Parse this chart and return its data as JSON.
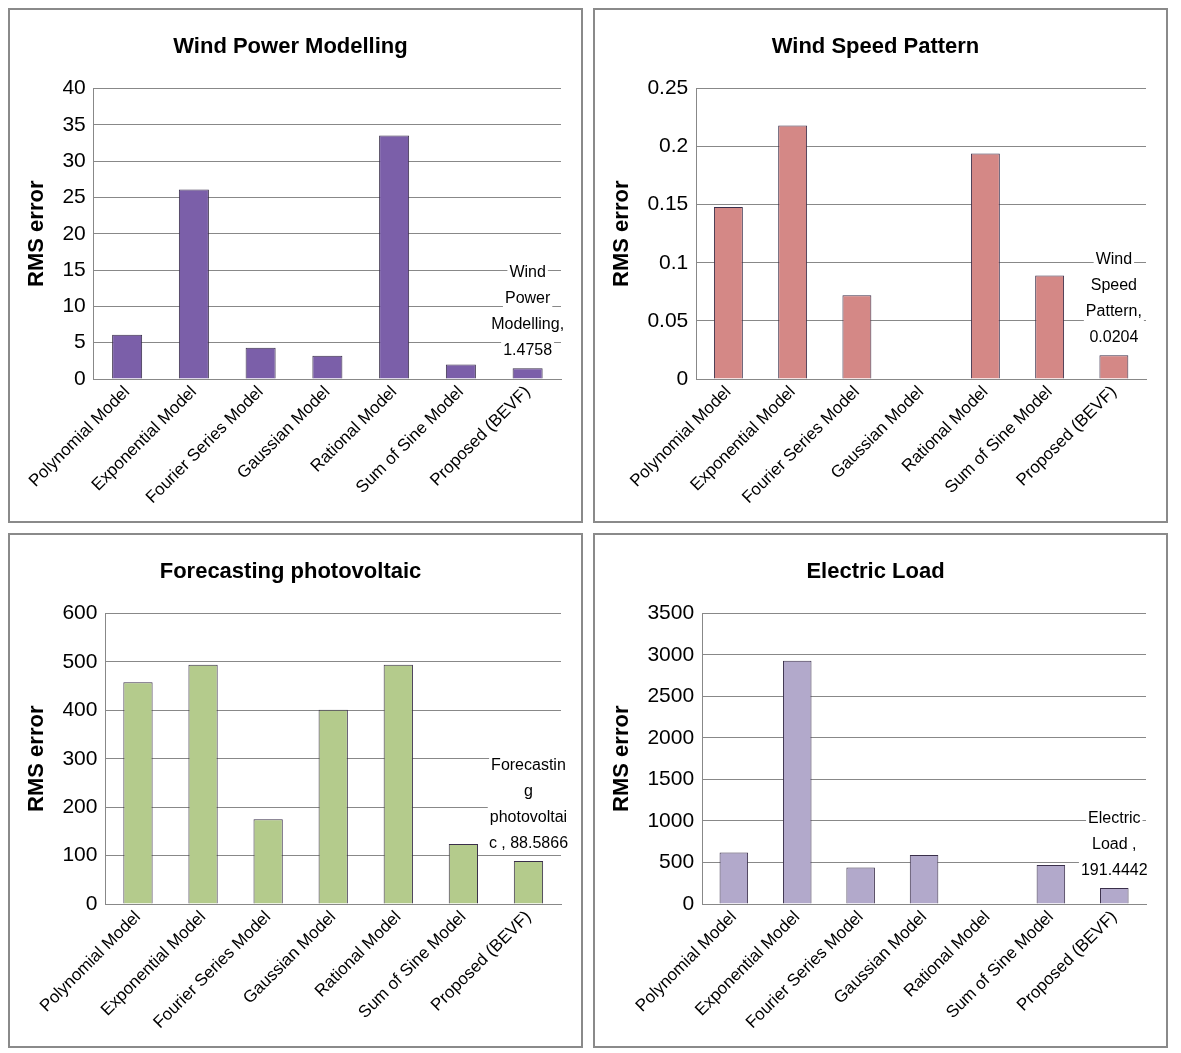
{
  "chart_data": [
    {
      "type": "bar",
      "title": "Wind Power Modelling",
      "ylabel": "RMS error",
      "categories": [
        "Polynomial Model",
        "Exponential Model",
        "Fourier Series Model",
        "Gaussian Model",
        "Rational Model",
        "Sum of Sine Model",
        "Proposed (BEVF)"
      ],
      "color": "#7b5fa9",
      "values": [
        6.1,
        26.1,
        4.3,
        3.2,
        33.5,
        2.0,
        1.4758
      ],
      "value_labels": [
        null,
        null,
        null,
        null,
        null,
        null,
        "Wind Power Modelling, 1.4758"
      ],
      "ylim": [
        0,
        40
      ],
      "yticks": [
        0,
        5,
        10,
        15,
        20,
        25,
        30,
        35,
        40
      ],
      "grid": "y",
      "legend": false
    },
    {
      "type": "bar",
      "title": "Wind Speed Pattern",
      "ylabel": "RMS error",
      "categories": [
        "Polynomial Model",
        "Exponential Model",
        "Fourier Series Model",
        "Gaussian Model",
        "Rational Model",
        "Sum of Sine Model",
        "Proposed (BEVF)"
      ],
      "color": "#d48886",
      "values": [
        0.148,
        0.218,
        0.072,
        null,
        0.194,
        0.089,
        0.0204
      ],
      "value_labels": [
        null,
        null,
        null,
        null,
        null,
        null,
        "Wind Speed Pattern, 0.0204"
      ],
      "ylim": [
        0,
        0.25
      ],
      "yticks": [
        0,
        0.05,
        0.1,
        0.15,
        0.2,
        0.25
      ],
      "grid": "y",
      "legend": false
    },
    {
      "type": "bar",
      "title": "Forecasting photovoltaic",
      "ylabel": "RMS error",
      "categories": [
        "Polynomial Model",
        "Exponential Model",
        "Fourier Series Model",
        "Gaussian Model",
        "Rational Model",
        "Sum of Sine Model",
        "Proposed (BEVF)"
      ],
      "color": "#b4cb8c",
      "values": [
        458,
        494,
        175,
        401,
        494,
        124,
        88.5866
      ],
      "value_labels": [
        null,
        null,
        null,
        null,
        null,
        null,
        "Forecasting photovoltaic , 88.5866"
      ],
      "ylim": [
        0,
        600
      ],
      "yticks": [
        0,
        100,
        200,
        300,
        400,
        500,
        600
      ],
      "grid": "y",
      "legend": false
    },
    {
      "type": "bar",
      "title": "Electric Load",
      "ylabel": "RMS error",
      "categories": [
        "Polynomial Model",
        "Exponential Model",
        "Fourier Series Model",
        "Gaussian Model",
        "Rational Model",
        "Sum of Sine Model",
        "Proposed (BEVF)"
      ],
      "color": "#b2a9cb",
      "values": [
        620,
        2930,
        440,
        590,
        null,
        470,
        191.4442
      ],
      "value_labels": [
        null,
        null,
        null,
        null,
        null,
        null,
        "Electric Load , 191.4442"
      ],
      "ylim": [
        0,
        3500
      ],
      "yticks": [
        0,
        500,
        1000,
        1500,
        2000,
        2500,
        3000,
        3500
      ],
      "grid": "y",
      "legend": false
    }
  ]
}
